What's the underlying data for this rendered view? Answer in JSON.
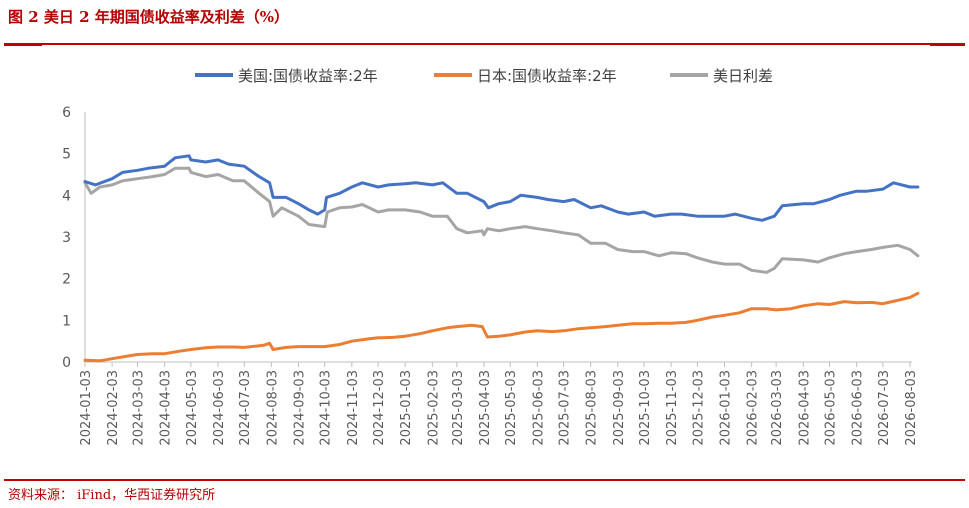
{
  "header": {
    "title": "图 2  美日 2 年期国债收益率及利差（%）"
  },
  "footer": {
    "source": "资料来源：  iFind，华西证券研究所"
  },
  "colors": {
    "us": "#4472c4",
    "jp": "#ed7d31",
    "spread": "#a5a5a5",
    "accent": "#c00000"
  },
  "chart_data": {
    "type": "line",
    "ylim": [
      0,
      6
    ],
    "yticks": [
      "0",
      "1",
      "2",
      "3",
      "4",
      "5",
      "6"
    ],
    "legend_position": "top",
    "x_start": "2024-01-03",
    "x_end": "2026-08-03",
    "x_ticks": [
      "2024-01-03",
      "2024-02-03",
      "2024-03-03",
      "2024-04-03",
      "2024-05-03",
      "2024-06-03",
      "2024-07-03",
      "2024-08-03",
      "2024-09-03",
      "2024-10-03",
      "2024-11-03",
      "2024-12-03",
      "2025-01-03",
      "2025-02-03",
      "2025-03-03",
      "2025-04-03",
      "2025-05-03",
      "2025-06-03",
      "2025-07-03",
      "2025-08-03",
      "2025-09-03",
      "2025-10-03",
      "2025-11-03",
      "2025-12-03",
      "2026-01-03",
      "2026-02-03",
      "2026-03-03",
      "2026-04-03",
      "2026-05-03",
      "2026-06-03",
      "2026-07-03",
      "2026-08-03"
    ],
    "series": [
      {
        "name": "美国:国债收益率:2年",
        "color": "#4472c4",
        "points": [
          [
            "2024-01-03",
            4.33
          ],
          [
            "2024-01-15",
            4.25
          ],
          [
            "2024-02-03",
            4.4
          ],
          [
            "2024-02-15",
            4.55
          ],
          [
            "2024-03-03",
            4.6
          ],
          [
            "2024-03-15",
            4.65
          ],
          [
            "2024-04-03",
            4.7
          ],
          [
            "2024-04-15",
            4.9
          ],
          [
            "2024-05-01",
            4.95
          ],
          [
            "2024-05-03",
            4.85
          ],
          [
            "2024-05-20",
            4.8
          ],
          [
            "2024-06-03",
            4.85
          ],
          [
            "2024-06-15",
            4.75
          ],
          [
            "2024-07-03",
            4.7
          ],
          [
            "2024-07-20",
            4.45
          ],
          [
            "2024-08-01",
            4.3
          ],
          [
            "2024-08-05",
            3.95
          ],
          [
            "2024-08-20",
            3.95
          ],
          [
            "2024-09-03",
            3.8
          ],
          [
            "2024-09-15",
            3.65
          ],
          [
            "2024-09-25",
            3.55
          ],
          [
            "2024-10-03",
            3.65
          ],
          [
            "2024-10-05",
            3.95
          ],
          [
            "2024-10-20",
            4.05
          ],
          [
            "2024-11-03",
            4.2
          ],
          [
            "2024-11-15",
            4.3
          ],
          [
            "2024-12-03",
            4.2
          ],
          [
            "2024-12-15",
            4.25
          ],
          [
            "2025-01-03",
            4.28
          ],
          [
            "2025-01-15",
            4.3
          ],
          [
            "2025-02-03",
            4.25
          ],
          [
            "2025-02-15",
            4.3
          ],
          [
            "2025-03-03",
            4.05
          ],
          [
            "2025-03-15",
            4.05
          ],
          [
            "2025-04-03",
            3.85
          ],
          [
            "2025-04-08",
            3.7
          ],
          [
            "2025-04-20",
            3.8
          ],
          [
            "2025-05-03",
            3.85
          ],
          [
            "2025-05-15",
            4.0
          ],
          [
            "2025-06-03",
            3.95
          ],
          [
            "2025-06-15",
            3.9
          ],
          [
            "2025-07-03",
            3.85
          ],
          [
            "2025-07-15",
            3.9
          ],
          [
            "2025-08-03",
            3.7
          ],
          [
            "2025-08-15",
            3.75
          ],
          [
            "2025-09-03",
            3.6
          ],
          [
            "2025-09-15",
            3.55
          ],
          [
            "2025-10-03",
            3.6
          ],
          [
            "2025-10-15",
            3.5
          ],
          [
            "2025-11-03",
            3.55
          ],
          [
            "2025-11-15",
            3.55
          ],
          [
            "2025-12-03",
            3.5
          ],
          [
            "2025-12-15",
            3.5
          ],
          [
            "2026-01-03",
            3.5
          ],
          [
            "2026-01-15",
            3.55
          ],
          [
            "2026-02-03",
            3.45
          ],
          [
            "2026-02-15",
            3.4
          ],
          [
            "2026-03-01",
            3.5
          ],
          [
            "2026-03-10",
            3.75
          ],
          [
            "2026-04-03",
            3.8
          ],
          [
            "2026-04-15",
            3.8
          ],
          [
            "2026-05-03",
            3.9
          ],
          [
            "2026-05-15",
            4.0
          ],
          [
            "2026-06-03",
            4.1
          ],
          [
            "2026-06-15",
            4.1
          ],
          [
            "2026-07-03",
            4.15
          ],
          [
            "2026-07-15",
            4.3
          ],
          [
            "2026-08-03",
            4.2
          ],
          [
            "2026-08-12",
            4.2
          ]
        ]
      },
      {
        "name": "日本:国债收益率:2年",
        "color": "#ed7d31",
        "points": [
          [
            "2024-01-03",
            0.04
          ],
          [
            "2024-01-20",
            0.03
          ],
          [
            "2024-02-03",
            0.08
          ],
          [
            "2024-02-20",
            0.14
          ],
          [
            "2024-03-03",
            0.18
          ],
          [
            "2024-03-20",
            0.2
          ],
          [
            "2024-04-03",
            0.2
          ],
          [
            "2024-04-20",
            0.26
          ],
          [
            "2024-05-03",
            0.3
          ],
          [
            "2024-05-20",
            0.34
          ],
          [
            "2024-06-03",
            0.36
          ],
          [
            "2024-06-20",
            0.36
          ],
          [
            "2024-07-03",
            0.35
          ],
          [
            "2024-07-25",
            0.4
          ],
          [
            "2024-08-01",
            0.45
          ],
          [
            "2024-08-05",
            0.3
          ],
          [
            "2024-08-20",
            0.35
          ],
          [
            "2024-09-03",
            0.37
          ],
          [
            "2024-09-20",
            0.37
          ],
          [
            "2024-10-03",
            0.37
          ],
          [
            "2024-10-20",
            0.42
          ],
          [
            "2024-11-03",
            0.5
          ],
          [
            "2024-11-20",
            0.55
          ],
          [
            "2024-12-03",
            0.58
          ],
          [
            "2024-12-20",
            0.59
          ],
          [
            "2025-01-03",
            0.62
          ],
          [
            "2025-01-20",
            0.68
          ],
          [
            "2025-02-03",
            0.75
          ],
          [
            "2025-02-20",
            0.82
          ],
          [
            "2025-03-03",
            0.85
          ],
          [
            "2025-03-20",
            0.88
          ],
          [
            "2025-04-01",
            0.85
          ],
          [
            "2025-04-07",
            0.6
          ],
          [
            "2025-04-20",
            0.62
          ],
          [
            "2025-05-03",
            0.65
          ],
          [
            "2025-05-20",
            0.72
          ],
          [
            "2025-06-03",
            0.75
          ],
          [
            "2025-06-20",
            0.73
          ],
          [
            "2025-07-03",
            0.75
          ],
          [
            "2025-07-20",
            0.8
          ],
          [
            "2025-08-03",
            0.82
          ],
          [
            "2025-08-20",
            0.85
          ],
          [
            "2025-09-03",
            0.88
          ],
          [
            "2025-09-20",
            0.92
          ],
          [
            "2025-10-03",
            0.92
          ],
          [
            "2025-10-20",
            0.93
          ],
          [
            "2025-11-03",
            0.93
          ],
          [
            "2025-11-20",
            0.95
          ],
          [
            "2025-12-03",
            1.0
          ],
          [
            "2025-12-20",
            1.08
          ],
          [
            "2026-01-03",
            1.12
          ],
          [
            "2026-01-20",
            1.18
          ],
          [
            "2026-02-03",
            1.28
          ],
          [
            "2026-02-20",
            1.28
          ],
          [
            "2026-03-03",
            1.25
          ],
          [
            "2026-03-20",
            1.28
          ],
          [
            "2026-04-03",
            1.35
          ],
          [
            "2026-04-20",
            1.4
          ],
          [
            "2026-05-03",
            1.38
          ],
          [
            "2026-05-20",
            1.45
          ],
          [
            "2026-06-03",
            1.42
          ],
          [
            "2026-06-20",
            1.43
          ],
          [
            "2026-07-03",
            1.4
          ],
          [
            "2026-07-20",
            1.48
          ],
          [
            "2026-08-03",
            1.55
          ],
          [
            "2026-08-12",
            1.65
          ]
        ]
      },
      {
        "name": "美日利差",
        "color": "#a5a5a5",
        "points": [
          [
            "2024-01-03",
            4.3
          ],
          [
            "2024-01-10",
            4.05
          ],
          [
            "2024-01-20",
            4.2
          ],
          [
            "2024-02-03",
            4.25
          ],
          [
            "2024-02-15",
            4.35
          ],
          [
            "2024-03-03",
            4.4
          ],
          [
            "2024-03-20",
            4.45
          ],
          [
            "2024-04-03",
            4.5
          ],
          [
            "2024-04-15",
            4.65
          ],
          [
            "2024-05-01",
            4.65
          ],
          [
            "2024-05-03",
            4.55
          ],
          [
            "2024-05-20",
            4.45
          ],
          [
            "2024-06-03",
            4.5
          ],
          [
            "2024-06-20",
            4.35
          ],
          [
            "2024-07-03",
            4.35
          ],
          [
            "2024-07-20",
            4.05
          ],
          [
            "2024-08-01",
            3.85
          ],
          [
            "2024-08-05",
            3.5
          ],
          [
            "2024-08-15",
            3.7
          ],
          [
            "2024-09-03",
            3.5
          ],
          [
            "2024-09-15",
            3.3
          ],
          [
            "2024-10-03",
            3.25
          ],
          [
            "2024-10-06",
            3.6
          ],
          [
            "2024-10-20",
            3.7
          ],
          [
            "2024-11-03",
            3.72
          ],
          [
            "2024-11-15",
            3.78
          ],
          [
            "2024-12-03",
            3.6
          ],
          [
            "2024-12-15",
            3.65
          ],
          [
            "2025-01-03",
            3.65
          ],
          [
            "2025-01-20",
            3.6
          ],
          [
            "2025-02-03",
            3.5
          ],
          [
            "2025-02-20",
            3.5
          ],
          [
            "2025-03-03",
            3.2
          ],
          [
            "2025-03-15",
            3.1
          ],
          [
            "2025-04-01",
            3.15
          ],
          [
            "2025-04-03",
            3.05
          ],
          [
            "2025-04-07",
            3.2
          ],
          [
            "2025-04-20",
            3.15
          ],
          [
            "2025-05-03",
            3.2
          ],
          [
            "2025-05-20",
            3.25
          ],
          [
            "2025-06-03",
            3.2
          ],
          [
            "2025-06-20",
            3.15
          ],
          [
            "2025-07-03",
            3.1
          ],
          [
            "2025-07-20",
            3.05
          ],
          [
            "2025-08-03",
            2.85
          ],
          [
            "2025-08-20",
            2.85
          ],
          [
            "2025-09-03",
            2.7
          ],
          [
            "2025-09-20",
            2.65
          ],
          [
            "2025-10-03",
            2.65
          ],
          [
            "2025-10-20",
            2.55
          ],
          [
            "2025-11-03",
            2.62
          ],
          [
            "2025-11-20",
            2.6
          ],
          [
            "2025-12-03",
            2.5
          ],
          [
            "2025-12-20",
            2.4
          ],
          [
            "2026-01-03",
            2.35
          ],
          [
            "2026-01-20",
            2.35
          ],
          [
            "2026-02-03",
            2.2
          ],
          [
            "2026-02-20",
            2.15
          ],
          [
            "2026-03-01",
            2.25
          ],
          [
            "2026-03-10",
            2.48
          ],
          [
            "2026-04-03",
            2.45
          ],
          [
            "2026-04-20",
            2.4
          ],
          [
            "2026-05-03",
            2.5
          ],
          [
            "2026-05-20",
            2.6
          ],
          [
            "2026-06-03",
            2.65
          ],
          [
            "2026-06-20",
            2.7
          ],
          [
            "2026-07-03",
            2.75
          ],
          [
            "2026-07-20",
            2.8
          ],
          [
            "2026-08-03",
            2.7
          ],
          [
            "2026-08-12",
            2.55
          ]
        ]
      }
    ]
  }
}
